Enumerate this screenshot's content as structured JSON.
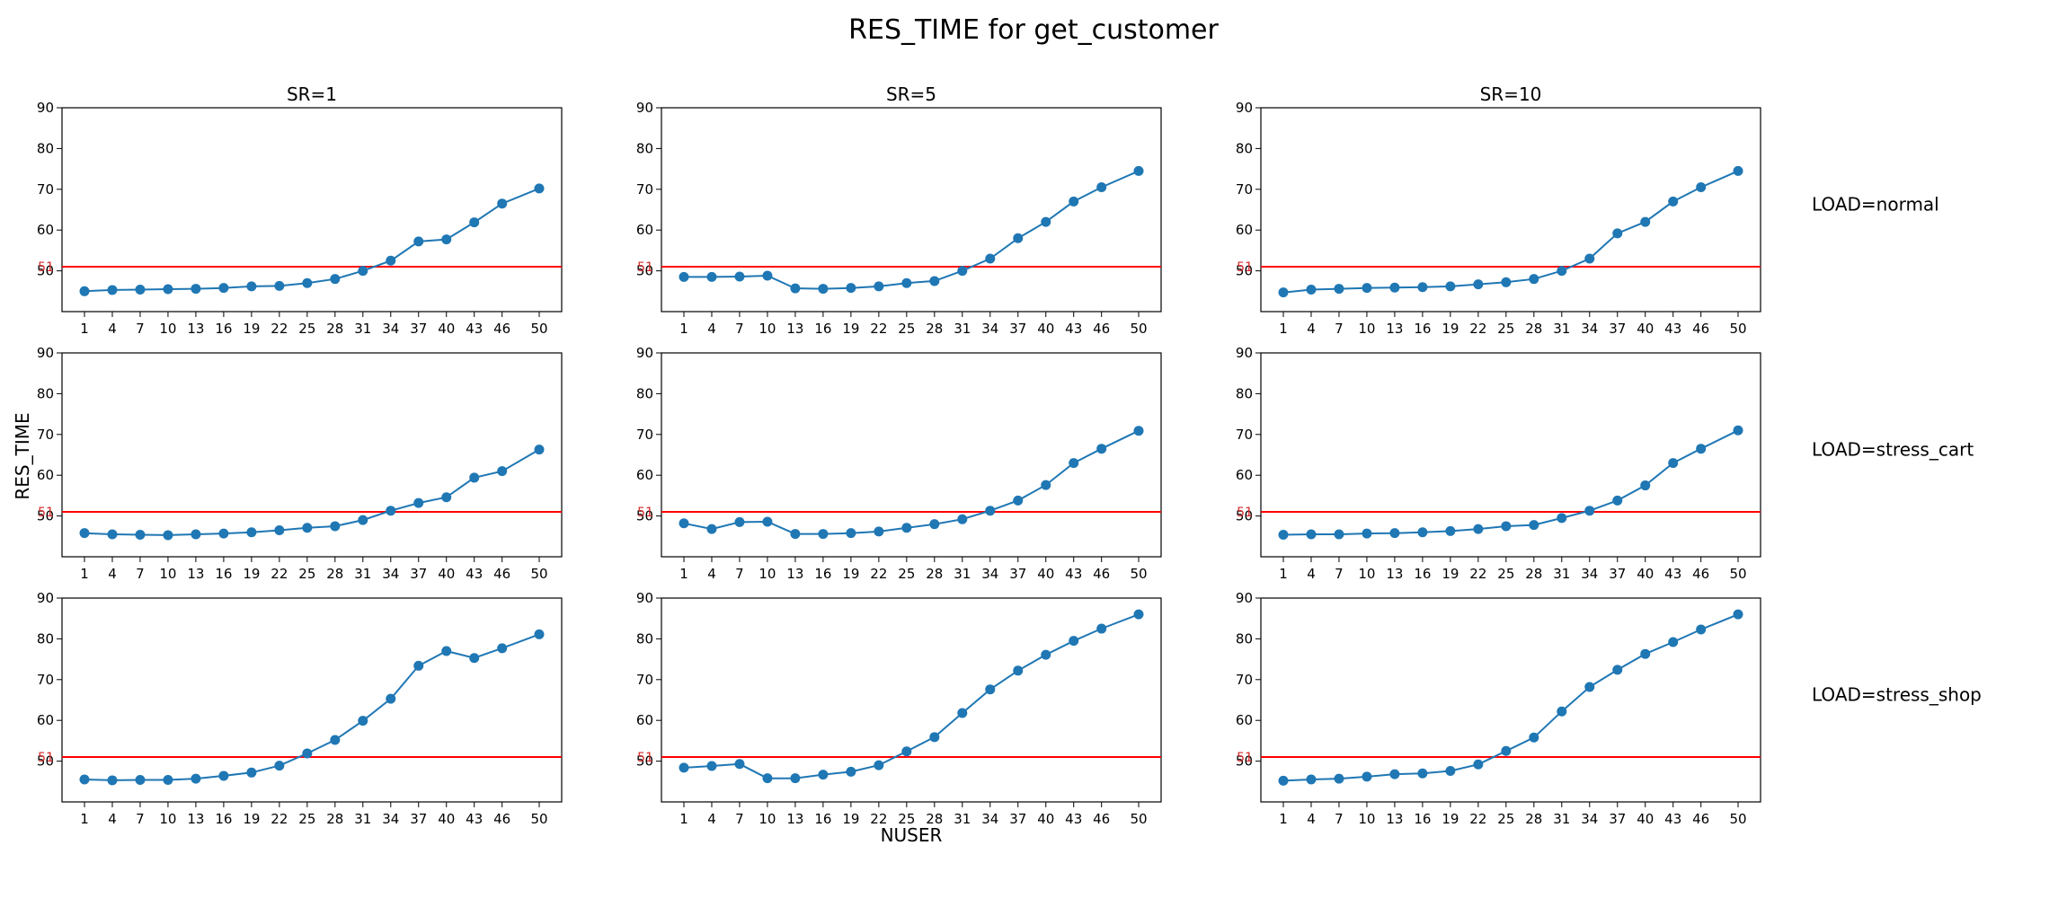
{
  "title": "RES_TIME for get_customer",
  "colors": {
    "series": "#1f77b4",
    "threshold": "#ff0000",
    "threshold_label": "#d62728"
  },
  "chart_data": {
    "type": "line",
    "title": "RES_TIME for get_customer",
    "xlabel": "NUSER",
    "ylabel": "RES_TIME",
    "x": [
      1,
      4,
      7,
      10,
      13,
      16,
      19,
      22,
      25,
      28,
      31,
      34,
      37,
      40,
      43,
      46,
      50
    ],
    "x_tick_labels": [
      "1",
      "4",
      "7",
      "10",
      "13",
      "16",
      "19",
      "22",
      "25",
      "28",
      "31",
      "34",
      "37",
      "40",
      "43",
      "46",
      "50"
    ],
    "ylim": [
      40,
      90
    ],
    "y_ticks": [
      50,
      60,
      70,
      80,
      90
    ],
    "threshold": 51,
    "threshold_label": "51",
    "grid": false,
    "columns": [
      "SR=1",
      "SR=5",
      "SR=10"
    ],
    "rows": [
      "LOAD=normal",
      "LOAD=stress_cart",
      "LOAD=stress_shop"
    ],
    "panels": [
      [
        [
          45.0,
          45.3,
          45.4,
          45.5,
          45.6,
          45.8,
          46.2,
          46.3,
          47.0,
          48.0,
          50.0,
          52.5,
          57.2,
          57.7,
          61.9,
          66.5,
          70.2
        ],
        [
          48.5,
          48.5,
          48.6,
          48.8,
          45.7,
          45.6,
          45.8,
          46.2,
          47.0,
          47.5,
          50.0,
          53.0,
          58.0,
          62.0,
          67.0,
          70.5,
          74.5
        ],
        [
          44.7,
          45.4,
          45.6,
          45.8,
          45.9,
          46.0,
          46.2,
          46.7,
          47.2,
          48.0,
          50.0,
          53.0,
          59.2,
          62.0,
          67.0,
          70.5,
          74.5
        ]
      ],
      [
        [
          45.8,
          45.5,
          45.4,
          45.3,
          45.5,
          45.7,
          46.0,
          46.5,
          47.1,
          47.5,
          49.0,
          51.3,
          53.2,
          54.6,
          59.4,
          61.0,
          66.3
        ],
        [
          48.2,
          46.8,
          48.5,
          48.6,
          45.6,
          45.6,
          45.8,
          46.2,
          47.1,
          48.0,
          49.2,
          51.3,
          53.8,
          57.6,
          63.0,
          66.5,
          70.9
        ],
        [
          45.4,
          45.5,
          45.5,
          45.7,
          45.8,
          46.0,
          46.3,
          46.8,
          47.5,
          47.8,
          49.5,
          51.3,
          53.8,
          57.5,
          63.0,
          66.5,
          71.0
        ]
      ],
      [
        [
          45.5,
          45.3,
          45.4,
          45.4,
          45.7,
          46.4,
          47.2,
          48.9,
          51.9,
          55.2,
          59.9,
          65.3,
          73.4,
          77.0,
          75.3,
          77.7,
          81.1
        ],
        [
          48.4,
          48.8,
          49.3,
          45.8,
          45.8,
          46.7,
          47.4,
          49.0,
          52.4,
          55.9,
          61.8,
          67.6,
          72.2,
          76.1,
          79.5,
          82.5,
          86.0
        ],
        [
          45.2,
          45.5,
          45.7,
          46.2,
          46.8,
          47.0,
          47.6,
          49.2,
          52.5,
          55.8,
          62.2,
          68.2,
          72.4,
          76.3,
          79.2,
          82.3,
          86.0
        ]
      ]
    ]
  }
}
